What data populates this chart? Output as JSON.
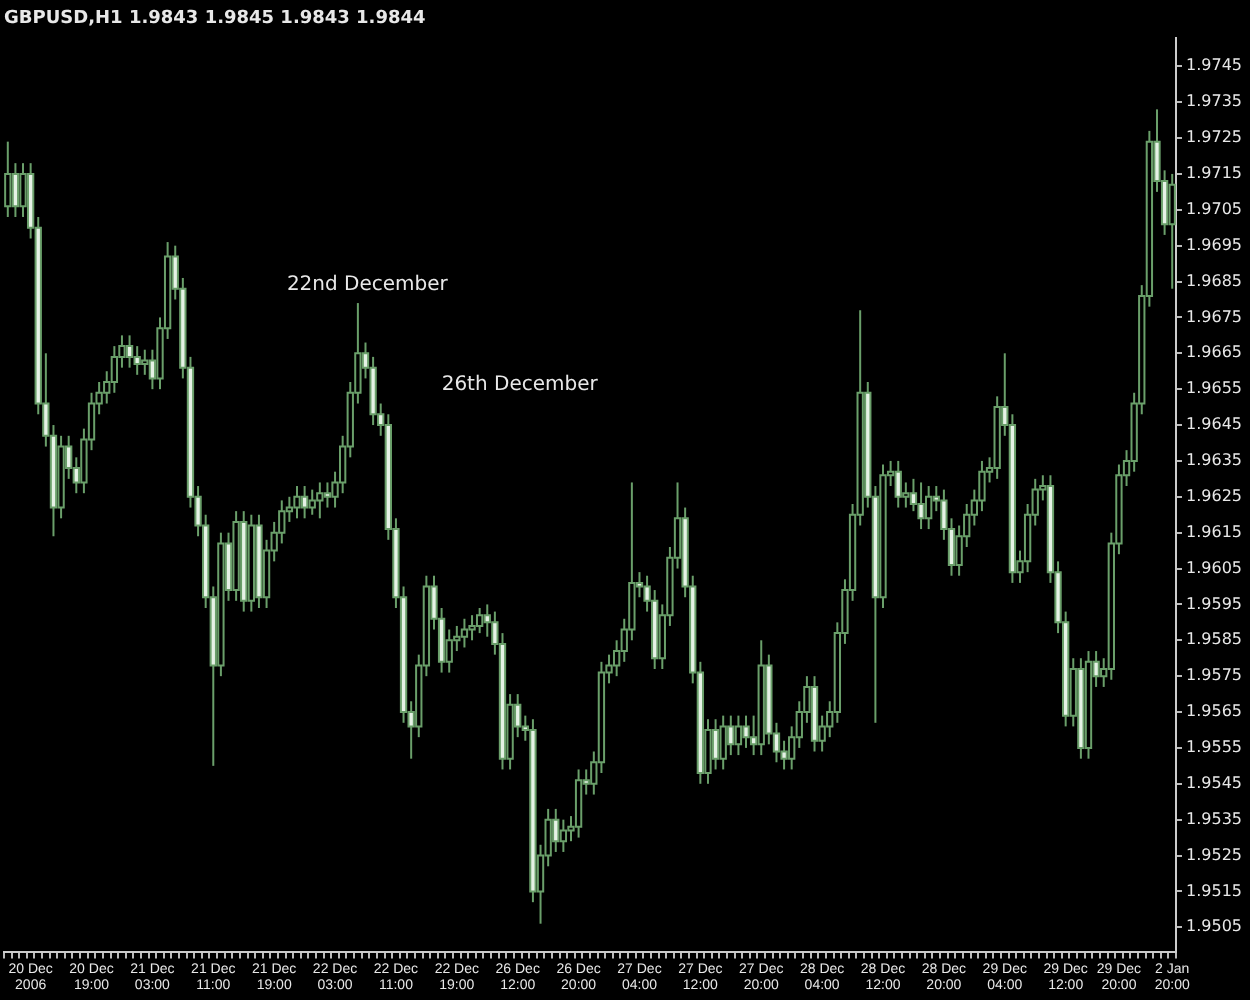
{
  "chart_data": {
    "type": "candlestick",
    "title": "GBPUSD,H1 1.9843 1.9845 1.9843 1.9844",
    "color": "#6a9f6a",
    "colors": [
      "#000000",
      "#e6f2e6",
      "#000000",
      "#e6f2e6",
      "#e6f2e6",
      "#e6f2e6",
      "#e6f2e6",
      "#000000",
      "#e6f2e6",
      "#e6f2e6",
      "#000000",
      "#000000",
      "#000000",
      "#000000",
      "#000000",
      "#000000",
      "#e6f2e6",
      "#e6f2e6",
      "#000000",
      "#e6f2e6",
      "#000000",
      "#000000",
      "#e6f2e6",
      "#e6f2e6",
      "#e6f2e6",
      "#e6f2e6",
      "#e6f2e6",
      "#e6f2e6",
      "#000000",
      "#e6f2e6",
      "#000000",
      "#e6f2e6",
      "#000000",
      "#e6f2e6",
      "#000000",
      "#000000",
      "#000000",
      "#000000",
      "#000000",
      "#e6f2e6",
      "#000000",
      "#000000",
      "#e6f2e6",
      "#000000",
      "#000000",
      "#000000",
      "#000000",
      "#e6f2e6",
      "#e6f2e6",
      "#e6f2e6",
      "#e6f2e6",
      "#e6f2e6",
      "#e6f2e6",
      "#e6f2e6",
      "#000000",
      "#000000",
      "#e6f2e6",
      "#e6f2e6",
      "#000000",
      "#000000",
      "#000000",
      "#000000",
      "#000000",
      "#e6f2e6",
      "#e6f2e6",
      "#e6f2e6",
      "#000000",
      "#e6f2e6",
      "#e6f2e6",
      "#e6f2e6",
      "#000000",
      "#000000",
      "#e6f2e6",
      "#000000",
      "#000000",
      "#000000",
      "#e6f2e6",
      "#000000",
      "#000000",
      "#000000",
      "#000000",
      "#000000",
      "#000000",
      "#e6f2e6",
      "#e6f2e6",
      "#e6f2e6",
      "#000000",
      "#000000",
      "#000000",
      "#e6f2e6",
      "#e6f2e6",
      "#e6f2e6",
      "#000000",
      "#e6f2e6",
      "#000000",
      "#e6f2e6",
      "#000000",
      "#e6f2e6",
      "#e6f2e6",
      "#000000",
      "#e6f2e6",
      "#e6f2e6",
      "#e6f2e6",
      "#000000",
      "#000000",
      "#000000",
      "#e6f2e6",
      "#000000",
      "#000000",
      "#000000",
      "#000000",
      "#000000",
      "#000000",
      "#e6f2e6",
      "#e6f2e6",
      "#000000",
      "#000000",
      "#e6f2e6",
      "#000000",
      "#e6f2e6",
      "#e6f2e6",
      "#000000",
      "#e6f2e6",
      "#e6f2e6",
      "#e6f2e6",
      "#000000",
      "#000000",
      "#000000",
      "#000000",
      "#000000",
      "#000000",
      "#e6f2e6",
      "#e6f2e6",
      "#000000",
      "#000000",
      "#000000",
      "#000000",
      "#e6f2e6",
      "#e6f2e6",
      "#e6f2e6",
      "#000000",
      "#e6f2e6",
      "#000000",
      "#e6f2e6",
      "#000000",
      "#000000",
      "#000000",
      "#000000",
      "#000000",
      "#000000",
      "#000000",
      "#e6f2e6",
      "#e6f2e6",
      "#000000"
    ],
    "categories": [
      null,
      null,
      null,
      "20 Dec 2006",
      null,
      null,
      null,
      null,
      null,
      null,
      null,
      "20 Dec 19:00",
      null,
      null,
      null,
      null,
      null,
      null,
      null,
      "21 Dec 03:00",
      null,
      null,
      null,
      null,
      null,
      null,
      null,
      "21 Dec 11:00",
      null,
      null,
      null,
      null,
      null,
      null,
      null,
      "21 Dec 19:00",
      null,
      null,
      null,
      null,
      null,
      null,
      null,
      "22 Dec 03:00",
      null,
      null,
      null,
      null,
      null,
      null,
      null,
      "22 Dec 11:00",
      null,
      null,
      null,
      null,
      null,
      null,
      null,
      "22 Dec 19:00",
      null,
      null,
      null,
      null,
      null,
      null,
      null,
      "26 Dec 12:00",
      null,
      null,
      null,
      null,
      null,
      null,
      null,
      "26 Dec 20:00",
      null,
      null,
      null,
      null,
      null,
      null,
      null,
      "27 Dec 04:00",
      null,
      null,
      null,
      null,
      null,
      null,
      null,
      "27 Dec 12:00",
      null,
      null,
      null,
      null,
      null,
      null,
      null,
      "27 Dec 20:00",
      null,
      null,
      null,
      null,
      null,
      null,
      null,
      "28 Dec 04:00",
      null,
      null,
      null,
      null,
      null,
      null,
      null,
      "28 Dec 12:00",
      null,
      null,
      null,
      null,
      null,
      null,
      null,
      "28 Dec 20:00",
      null,
      null,
      null,
      null,
      null,
      null,
      null,
      "29 Dec 04:00",
      null,
      null,
      null,
      null,
      null,
      null,
      null,
      "29 Dec 12:00",
      null,
      null,
      null,
      null,
      null,
      null,
      "29 Dec 20:00",
      null,
      null,
      null,
      null,
      null,
      null,
      "2 Jan 20:00"
    ],
    "ohlc": [
      [
        1.9706,
        1.9724,
        1.9703,
        1.9715
      ],
      [
        1.9715,
        1.9718,
        1.9703,
        1.9706
      ],
      [
        1.9706,
        1.9718,
        1.9703,
        1.9715
      ],
      [
        1.9715,
        1.9718,
        1.9697,
        1.97
      ],
      [
        1.97,
        1.9703,
        1.9648,
        1.9651
      ],
      [
        1.9651,
        1.9665,
        1.9639,
        1.9642
      ],
      [
        1.9642,
        1.9645,
        1.9614,
        1.9622
      ],
      [
        1.9622,
        1.9642,
        1.9619,
        1.9639
      ],
      [
        1.9639,
        1.9642,
        1.963,
        1.9633
      ],
      [
        1.9633,
        1.9636,
        1.9626,
        1.9629
      ],
      [
        1.9629,
        1.9644,
        1.9626,
        1.9641
      ],
      [
        1.9641,
        1.9654,
        1.9638,
        1.9651
      ],
      [
        1.9651,
        1.9657,
        1.9648,
        1.9654
      ],
      [
        1.9654,
        1.966,
        1.9651,
        1.9657
      ],
      [
        1.9657,
        1.9667,
        1.9654,
        1.9664
      ],
      [
        1.9664,
        1.967,
        1.9661,
        1.9667
      ],
      [
        1.9667,
        1.967,
        1.9661,
        1.9664
      ],
      [
        1.9664,
        1.9667,
        1.9659,
        1.9662
      ],
      [
        1.9662,
        1.9666,
        1.9659,
        1.9663
      ],
      [
        1.9663,
        1.9666,
        1.9655,
        1.9658
      ],
      [
        1.9658,
        1.9675,
        1.9655,
        1.9672
      ],
      [
        1.9672,
        1.9696,
        1.9669,
        1.9692
      ],
      [
        1.9692,
        1.9695,
        1.968,
        1.9683
      ],
      [
        1.9683,
        1.9686,
        1.9658,
        1.9661
      ],
      [
        1.9661,
        1.9664,
        1.9622,
        1.9625
      ],
      [
        1.9625,
        1.9628,
        1.9614,
        1.9617
      ],
      [
        1.9617,
        1.962,
        1.9594,
        1.9597
      ],
      [
        1.9597,
        1.96,
        1.955,
        1.9578
      ],
      [
        1.9578,
        1.9615,
        1.9575,
        1.9612
      ],
      [
        1.9612,
        1.9615,
        1.9596,
        1.9599
      ],
      [
        1.9599,
        1.9621,
        1.9596,
        1.9618
      ],
      [
        1.9618,
        1.9621,
        1.9593,
        1.9596
      ],
      [
        1.9596,
        1.962,
        1.9593,
        1.9617
      ],
      [
        1.9617,
        1.962,
        1.9594,
        1.9597
      ],
      [
        1.9597,
        1.9613,
        1.9594,
        1.961
      ],
      [
        1.961,
        1.9618,
        1.9607,
        1.9615
      ],
      [
        1.9615,
        1.9624,
        1.9612,
        1.9621
      ],
      [
        1.9621,
        1.9625,
        1.9618,
        1.9622
      ],
      [
        1.9622,
        1.9628,
        1.9619,
        1.9625
      ],
      [
        1.9625,
        1.9628,
        1.9619,
        1.9622
      ],
      [
        1.9622,
        1.9627,
        1.962,
        1.9624
      ],
      [
        1.9624,
        1.9629,
        1.9619,
        1.9626
      ],
      [
        1.9626,
        1.9629,
        1.9622,
        1.9625
      ],
      [
        1.9625,
        1.9632,
        1.9622,
        1.9629
      ],
      [
        1.9629,
        1.9642,
        1.9626,
        1.9639
      ],
      [
        1.9639,
        1.9657,
        1.9636,
        1.9654
      ],
      [
        1.9654,
        1.9679,
        1.9651,
        1.9665
      ],
      [
        1.9665,
        1.9668,
        1.9658,
        1.9661
      ],
      [
        1.9661,
        1.9664,
        1.9645,
        1.9648
      ],
      [
        1.9648,
        1.9651,
        1.9642,
        1.9645
      ],
      [
        1.9645,
        1.9648,
        1.9613,
        1.9616
      ],
      [
        1.9616,
        1.9619,
        1.9594,
        1.9597
      ],
      [
        1.9597,
        1.96,
        1.9562,
        1.9565
      ],
      [
        1.9565,
        1.9568,
        1.9552,
        1.9561
      ],
      [
        1.9561,
        1.9581,
        1.9558,
        1.9578
      ],
      [
        1.9578,
        1.9603,
        1.9575,
        1.96
      ],
      [
        1.96,
        1.9603,
        1.9588,
        1.9591
      ],
      [
        1.9591,
        1.9594,
        1.9576,
        1.9579
      ],
      [
        1.9579,
        1.9588,
        1.9576,
        1.9585
      ],
      [
        1.9585,
        1.9589,
        1.9582,
        1.9586
      ],
      [
        1.9586,
        1.9591,
        1.9583,
        1.9588
      ],
      [
        1.9588,
        1.9592,
        1.9585,
        1.9589
      ],
      [
        1.9589,
        1.9594,
        1.9587,
        1.9592
      ],
      [
        1.9592,
        1.9595,
        1.9586,
        1.959
      ],
      [
        1.959,
        1.9593,
        1.9581,
        1.9584
      ],
      [
        1.9584,
        1.9587,
        1.9549,
        1.9552
      ],
      [
        1.9552,
        1.957,
        1.9549,
        1.9567
      ],
      [
        1.9567,
        1.957,
        1.9558,
        1.9561
      ],
      [
        1.9561,
        1.9564,
        1.9557,
        1.956
      ],
      [
        1.956,
        1.9563,
        1.9512,
        1.9515
      ],
      [
        1.9515,
        1.9528,
        1.9506,
        1.9525
      ],
      [
        1.9525,
        1.9538,
        1.9522,
        1.9535
      ],
      [
        1.9535,
        1.9538,
        1.9526,
        1.9529
      ],
      [
        1.9529,
        1.9535,
        1.9526,
        1.9532
      ],
      [
        1.9532,
        1.9536,
        1.9529,
        1.9533
      ],
      [
        1.9533,
        1.9549,
        1.953,
        1.9546
      ],
      [
        1.9546,
        1.9549,
        1.9542,
        1.9545
      ],
      [
        1.9545,
        1.9554,
        1.9542,
        1.9551
      ],
      [
        1.9551,
        1.9579,
        1.9548,
        1.9576
      ],
      [
        1.9576,
        1.9581,
        1.9573,
        1.9578
      ],
      [
        1.9578,
        1.9585,
        1.9575,
        1.9582
      ],
      [
        1.9582,
        1.9591,
        1.9579,
        1.9588
      ],
      [
        1.9588,
        1.9629,
        1.9585,
        1.9601
      ],
      [
        1.9601,
        1.9604,
        1.9597,
        1.96
      ],
      [
        1.96,
        1.9603,
        1.9593,
        1.9596
      ],
      [
        1.9596,
        1.9599,
        1.9577,
        1.958
      ],
      [
        1.958,
        1.9595,
        1.9577,
        1.9592
      ],
      [
        1.9592,
        1.9611,
        1.9589,
        1.9608
      ],
      [
        1.9608,
        1.9629,
        1.9605,
        1.9619
      ],
      [
        1.9619,
        1.9622,
        1.9597,
        1.96
      ],
      [
        1.96,
        1.9603,
        1.9573,
        1.9576
      ],
      [
        1.9576,
        1.9579,
        1.9545,
        1.9548
      ],
      [
        1.9548,
        1.9563,
        1.9545,
        1.956
      ],
      [
        1.956,
        1.9563,
        1.9549,
        1.9552
      ],
      [
        1.9552,
        1.9564,
        1.9549,
        1.9561
      ],
      [
        1.9561,
        1.9564,
        1.9553,
        1.9556
      ],
      [
        1.9556,
        1.9564,
        1.9553,
        1.9561
      ],
      [
        1.9561,
        1.9564,
        1.9555,
        1.9558
      ],
      [
        1.9558,
        1.9564,
        1.9553,
        1.9556
      ],
      [
        1.9556,
        1.9585,
        1.9553,
        1.9578
      ],
      [
        1.9578,
        1.9581,
        1.9556,
        1.9559
      ],
      [
        1.9559,
        1.9562,
        1.9551,
        1.9554
      ],
      [
        1.9554,
        1.9557,
        1.9549,
        1.9552
      ],
      [
        1.9552,
        1.9561,
        1.9549,
        1.9558
      ],
      [
        1.9558,
        1.9568,
        1.9555,
        1.9565
      ],
      [
        1.9565,
        1.9575,
        1.9562,
        1.9572
      ],
      [
        1.9572,
        1.9575,
        1.9554,
        1.9557
      ],
      [
        1.9557,
        1.9564,
        1.9554,
        1.9561
      ],
      [
        1.9561,
        1.9568,
        1.9558,
        1.9565
      ],
      [
        1.9565,
        1.959,
        1.9562,
        1.9587
      ],
      [
        1.9587,
        1.9602,
        1.9584,
        1.9599
      ],
      [
        1.9599,
        1.9623,
        1.9596,
        1.962
      ],
      [
        1.962,
        1.9677,
        1.9617,
        1.9654
      ],
      [
        1.9654,
        1.9657,
        1.9622,
        1.9625
      ],
      [
        1.9625,
        1.9628,
        1.9562,
        1.9597
      ],
      [
        1.9597,
        1.9634,
        1.9594,
        1.9631
      ],
      [
        1.9631,
        1.9635,
        1.9628,
        1.9632
      ],
      [
        1.9632,
        1.9635,
        1.9622,
        1.9625
      ],
      [
        1.9625,
        1.9629,
        1.9622,
        1.9626
      ],
      [
        1.9626,
        1.963,
        1.9621,
        1.9623
      ],
      [
        1.9623,
        1.9629,
        1.9616,
        1.9619
      ],
      [
        1.9619,
        1.9628,
        1.9616,
        1.9625
      ],
      [
        1.9625,
        1.9628,
        1.9621,
        1.9624
      ],
      [
        1.9624,
        1.9627,
        1.9613,
        1.9616
      ],
      [
        1.9616,
        1.9619,
        1.9603,
        1.9606
      ],
      [
        1.9606,
        1.9617,
        1.9603,
        1.9614
      ],
      [
        1.9614,
        1.9623,
        1.9611,
        1.962
      ],
      [
        1.962,
        1.9627,
        1.9617,
        1.9624
      ],
      [
        1.9624,
        1.9635,
        1.9621,
        1.9632
      ],
      [
        1.9632,
        1.9636,
        1.9629,
        1.9633
      ],
      [
        1.9633,
        1.9653,
        1.963,
        1.965
      ],
      [
        1.965,
        1.9665,
        1.9642,
        1.9645
      ],
      [
        1.9645,
        1.9648,
        1.9601,
        1.9604
      ],
      [
        1.9604,
        1.961,
        1.9601,
        1.9607
      ],
      [
        1.9607,
        1.9623,
        1.9604,
        1.962
      ],
      [
        1.962,
        1.963,
        1.9617,
        1.9627
      ],
      [
        1.9627,
        1.9631,
        1.9624,
        1.9628
      ],
      [
        1.9628,
        1.9631,
        1.9601,
        1.9604
      ],
      [
        1.9604,
        1.9607,
        1.9587,
        1.959
      ],
      [
        1.959,
        1.9593,
        1.9561,
        1.9564
      ],
      [
        1.9564,
        1.958,
        1.9561,
        1.9577
      ],
      [
        1.9577,
        1.958,
        1.9552,
        1.9555
      ],
      [
        1.9555,
        1.9582,
        1.9552,
        1.9579
      ],
      [
        1.9579,
        1.9582,
        1.9572,
        1.9575
      ],
      [
        1.9575,
        1.958,
        1.9572,
        1.9577
      ],
      [
        1.9577,
        1.9615,
        1.9574,
        1.9612
      ],
      [
        1.9612,
        1.9634,
        1.9609,
        1.9631
      ],
      [
        1.9631,
        1.9638,
        1.9628,
        1.9635
      ],
      [
        1.9635,
        1.9654,
        1.9632,
        1.9651
      ],
      [
        1.9651,
        1.9684,
        1.9648,
        1.9681
      ],
      [
        1.9681,
        1.9727,
        1.9678,
        1.9724
      ],
      [
        1.9724,
        1.9733,
        1.971,
        1.9713
      ],
      [
        1.9713,
        1.9716,
        1.9698,
        1.9701
      ],
      [
        1.9701,
        1.9715,
        1.9683,
        1.9712
      ]
    ],
    "ylim": [
      1.9498,
      1.9753
    ],
    "yticks": [
      1.9505,
      1.9515,
      1.9525,
      1.9535,
      1.9545,
      1.9555,
      1.9565,
      1.9575,
      1.9585,
      1.9595,
      1.9605,
      1.9615,
      1.9625,
      1.9635,
      1.9645,
      1.9655,
      1.9665,
      1.9675,
      1.9685,
      1.9695,
      1.9705,
      1.9715,
      1.9725,
      1.9735,
      1.9745
    ],
    "annotations": [
      "22nd December",
      "26th December"
    ]
  }
}
